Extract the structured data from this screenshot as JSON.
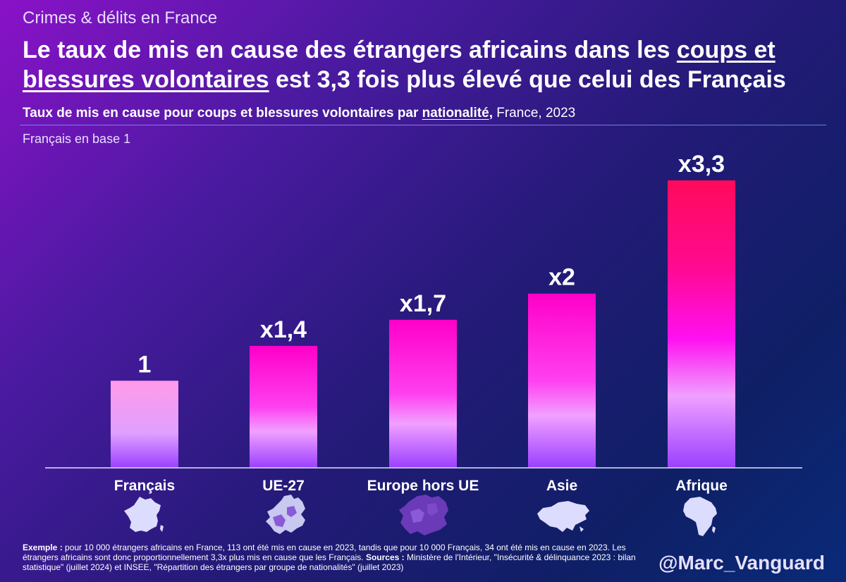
{
  "kicker": "Crimes & délits en France",
  "headline": {
    "part1": "Le taux de mis en cause des étrangers africains dans les ",
    "underlined": "coups et blessures volontaires",
    "part2": " est 3,3 fois plus élevé que celui des Français"
  },
  "subtitle": {
    "bold_part": "Taux de mis en cause pour coups et blessures volontaires par ",
    "underlined": "nationalité",
    "comma": ",",
    "rest": " France, 2023"
  },
  "base_note": "Français en base 1",
  "chart_data": {
    "type": "bar",
    "title": "Taux de mis en cause pour coups et blessures volontaires par nationalité, France, 2023",
    "categories": [
      "Français",
      "UE-27",
      "Europe hors UE",
      "Asie",
      "Afrique"
    ],
    "values": [
      1,
      1.4,
      1.7,
      2,
      3.3
    ],
    "value_labels": [
      "1",
      "x1,4",
      "x1,7",
      "x2",
      "x3,3"
    ],
    "ylim": [
      0,
      3.3
    ],
    "xlabel": "",
    "ylabel": "Français en base 1",
    "grid": false,
    "colors": {
      "gradient_top": "#ff00c8",
      "gradient_mid": "#ff40e0",
      "gradient_bottom": "#9a40ff",
      "afrique_top": "#ff0a5a",
      "francais_top": "#ff9ae0",
      "axis": "#e0e0ff"
    }
  },
  "icons": [
    "france-map-icon",
    "eu-map-icon",
    "europe-map-icon",
    "asia-map-icon",
    "africa-map-icon"
  ],
  "footnote": {
    "label": "Exemple :",
    "text": " pour 10 000 étrangers africains en France, 113 ont été mis en cause en 2023, tandis que pour 10 000 Français, 34 ont été mis en cause en 2023. Les étrangers africains sont donc proportionnellement 3,3x plus mis en cause que les Français. ",
    "sources_label": "Sources :",
    "sources": " Ministère de l'Intérieur, \"Insécurité & délinquance 2023 : bilan statistique\" (juillet 2024) et INSEE, \"Répartition des étrangers par groupe de nationalités\" (juillet 2023)"
  },
  "handle": "@Marc_Vanguard"
}
